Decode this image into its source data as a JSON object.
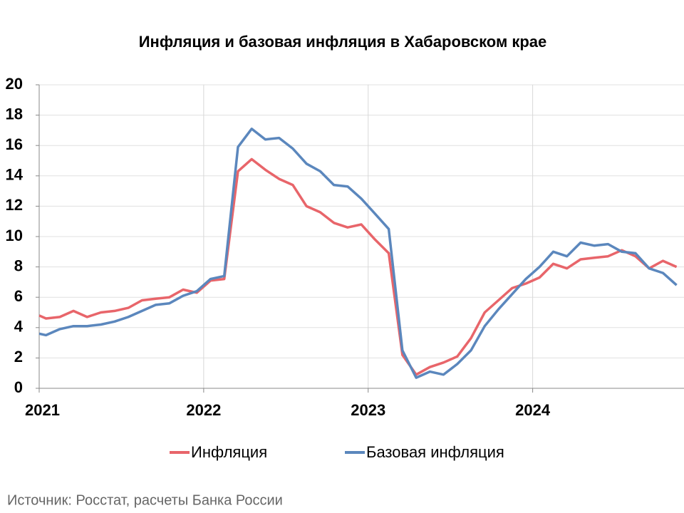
{
  "chart_data": {
    "type": "line",
    "title": "Инфляция и базовая инфляция в Хабаровском крае",
    "source": "Источник: Росстат, расчеты Банка России",
    "x": [
      2021,
      2021.0417,
      2021.125,
      2021.2083,
      2021.2917,
      2021.375,
      2021.4583,
      2021.5417,
      2021.625,
      2021.7083,
      2021.7917,
      2021.875,
      2021.9583,
      2022.0417,
      2022.125,
      2022.2083,
      2022.2917,
      2022.375,
      2022.4583,
      2022.5417,
      2022.625,
      2022.7083,
      2022.7917,
      2022.875,
      2022.9583,
      2023.0417,
      2023.125,
      2023.2083,
      2023.2917,
      2023.375,
      2023.4583,
      2023.5417,
      2023.625,
      2023.7083,
      2023.7917,
      2023.875,
      2023.9583,
      2024.0417,
      2024.125,
      2024.2083,
      2024.2917,
      2024.375,
      2024.4583,
      2024.5417,
      2024.625,
      2024.7083,
      2024.7917,
      2024.875
    ],
    "series": [
      {
        "name": "Инфляция",
        "color": "#e8656a",
        "values": [
          4.8,
          4.6,
          4.7,
          5.1,
          4.7,
          5.0,
          5.1,
          5.3,
          5.8,
          5.9,
          6.0,
          6.5,
          6.3,
          7.1,
          7.2,
          14.3,
          15.1,
          14.4,
          13.8,
          13.4,
          12.0,
          11.6,
          10.9,
          10.6,
          10.8,
          9.8,
          8.9,
          2.2,
          0.9,
          1.4,
          1.7,
          2.1,
          3.3,
          5.0,
          5.8,
          6.6,
          6.9,
          7.3,
          8.2,
          7.9,
          8.5,
          8.6,
          8.7,
          9.1,
          8.7,
          7.9,
          8.4,
          8.0
        ]
      },
      {
        "name": "Базовая инфляция",
        "color": "#5b87bd",
        "values": [
          3.6,
          3.5,
          3.9,
          4.1,
          4.1,
          4.2,
          4.4,
          4.7,
          5.1,
          5.5,
          5.6,
          6.1,
          6.4,
          7.2,
          7.4,
          15.9,
          17.1,
          16.4,
          16.5,
          15.8,
          14.8,
          14.3,
          13.4,
          13.3,
          12.5,
          11.5,
          10.5,
          2.5,
          0.7,
          1.1,
          0.9,
          1.6,
          2.5,
          4.1,
          5.2,
          6.2,
          7.2,
          8.0,
          9.0,
          8.7,
          9.6,
          9.4,
          9.5,
          9.0,
          8.9,
          7.9,
          7.6,
          6.8
        ]
      }
    ],
    "xlim": [
      2021,
      2024.92
    ],
    "xticks": [
      2021,
      2022,
      2023,
      2024
    ],
    "ylim": [
      0,
      20
    ],
    "yticks": [
      0,
      2,
      4,
      6,
      8,
      10,
      12,
      14,
      16,
      18,
      20
    ],
    "grid": true,
    "legend": "bottom"
  }
}
